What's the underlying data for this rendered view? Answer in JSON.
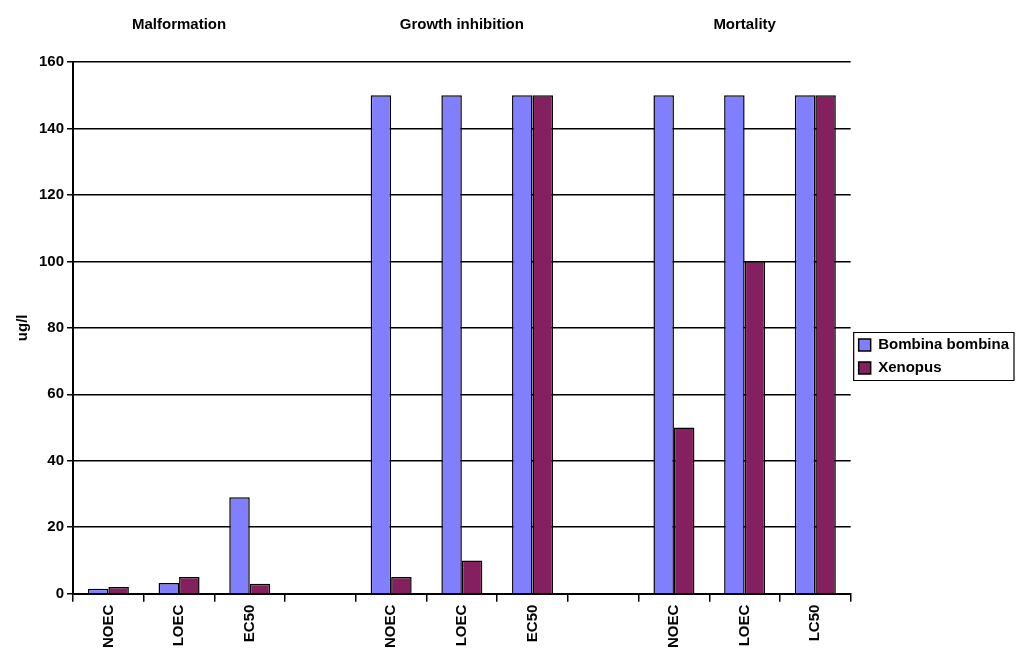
{
  "chart_data": {
    "type": "bar",
    "ylabel": "ug/l",
    "annotations": [
      "Malformation",
      "Growth inhibition",
      "Mortality"
    ],
    "categories": [
      "NOEC",
      "LOEC",
      "EC50",
      null,
      "NOEC",
      "LOEC",
      "EC50",
      null,
      "NOEC",
      "LOEC",
      "LC50"
    ],
    "series": [
      {
        "name": "Bombina bombina",
        "color": "#8080ff",
        "values": [
          1.5,
          3.2,
          29,
          null,
          150,
          150,
          150,
          null,
          150,
          150,
          150
        ]
      },
      {
        "name": "Xenopus",
        "color": "#842060",
        "values": [
          2,
          5,
          3,
          null,
          5,
          10,
          150,
          null,
          50,
          100,
          150
        ]
      }
    ],
    "ylim": [
      0,
      160
    ],
    "yticks": [
      0,
      20,
      40,
      60,
      80,
      100,
      120,
      140,
      160
    ],
    "grid": "y",
    "legend": "right"
  }
}
